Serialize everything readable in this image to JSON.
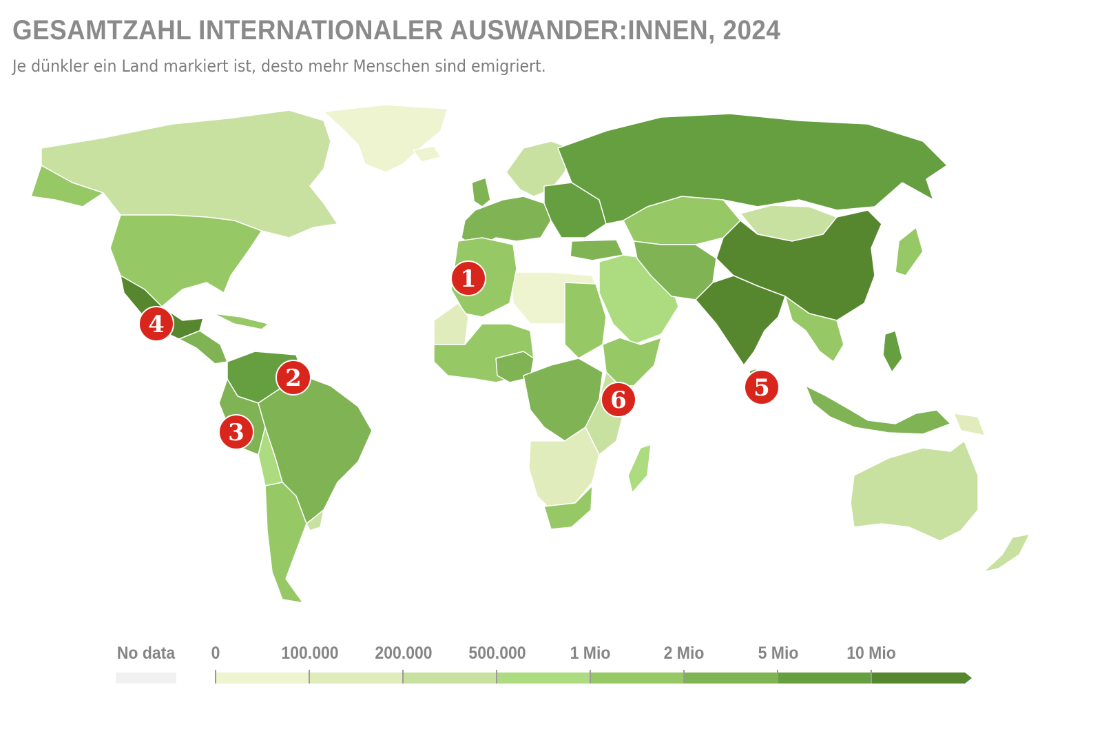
{
  "title": "GESAMTZAHL INTERNATIONALER AUSWANDER:INNEN, 2024",
  "subtitle": "Je dünkler ein Land markiert ist, desto mehr Menschen sind emigriert.",
  "markers": [
    {
      "label": "1",
      "place": "Marokko"
    },
    {
      "label": "2",
      "place": "Venezuela"
    },
    {
      "label": "3",
      "place": "Ecuador"
    },
    {
      "label": "4",
      "place": "Mexiko"
    },
    {
      "label": "5",
      "place": "Indien / Sri Lanka"
    },
    {
      "label": "6",
      "place": "Kenia / Somalia"
    }
  ],
  "legend": {
    "no_data_label": "No data",
    "no_data_color": "#f1f1f1",
    "thresholds": [
      "0",
      "100.000",
      "200.000",
      "500.000",
      "1 Mio",
      "2 Mio",
      "5 Mio",
      "10 Mio"
    ],
    "colors": [
      "#eef4cf",
      "#e1ecbc",
      "#c8e0a0",
      "#addb7f",
      "#97c866",
      "#7fb354",
      "#659f40",
      "#56862d"
    ]
  },
  "colors": {
    "marker": "#d9261c",
    "ocean": "#ffffff",
    "border": "#ffffff"
  }
}
